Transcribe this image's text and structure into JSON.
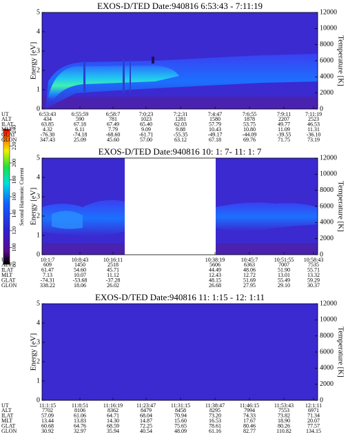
{
  "colorbar": {
    "label": "Second Harmonic Current",
    "lim": [
      80,
      240
    ],
    "ticks": [
      80,
      100,
      120,
      140,
      160,
      180,
      200,
      220,
      240
    ]
  },
  "chart_data": [
    {
      "type": "spectrogram",
      "title": "EXOS-D/TED   Date:940816  6:53:43 - 7:11:19",
      "y_label": "Energy [eV]",
      "y2_label": "Temperature [K]",
      "ylim": [
        0,
        5
      ],
      "yticks": [
        0,
        1,
        2,
        3,
        4,
        5
      ],
      "y2lim": [
        0,
        12000
      ],
      "y2ticks": [
        0,
        2000,
        4000,
        6000,
        8000,
        10000,
        12000
      ],
      "table": {
        "row_labels": [
          "UT",
          "ALT",
          "ILAT",
          "MLT",
          "GLAT",
          "GLON"
        ],
        "columns": [
          [
            "6:53:43",
            "434",
            "63.85",
            "4.32",
            "-76.30",
            "347.43"
          ],
          [
            "6:55:59",
            "590",
            "67.18",
            "6.11",
            "-74.18",
            "25.09"
          ],
          [
            "6:58:7",
            "781",
            "67.49",
            "7.79",
            "-68.60",
            "45.60"
          ],
          [
            "7:0:23",
            "1023",
            "65.40",
            "9.09",
            "-61.71",
            "57.00"
          ],
          [
            "7:2:31",
            "1281",
            "62.03",
            "9.88",
            "-55.35",
            "63.12"
          ],
          [
            "7:4:47",
            "1580",
            "57.79",
            "10.43",
            "-49.17",
            "67.18"
          ],
          [
            "7:6:55",
            "1878",
            "53.75",
            "10.80",
            "-44.09",
            "69.76"
          ],
          [
            "7:9:11",
            "2207",
            "49.77",
            "11.09",
            "-39.55",
            "71.75"
          ],
          [
            "7:11:19",
            "2523",
            "46.53",
            "11.31",
            "-36.10",
            "73.19"
          ]
        ]
      }
    },
    {
      "type": "spectrogram",
      "title": "EXOS-D/TED   Date:940816  10: 1: 7- 11: 1: 7",
      "y_label": "Energy [eV]",
      "y2_label": "Temperature [K]",
      "ylim": [
        0,
        5
      ],
      "yticks": [
        0,
        1,
        2,
        3,
        4,
        5
      ],
      "y2lim": [
        0,
        12000
      ],
      "y2ticks": [
        0,
        2000,
        4000,
        6000,
        8000,
        10000,
        12000
      ],
      "table": {
        "row_labels": [
          "UT",
          "ALT",
          "ILAT",
          "MLT",
          "GLAT",
          "GLON"
        ],
        "columns": [
          [
            "10:1:7",
            "609",
            "61.47",
            "7.13",
            "-74.31",
            "338.22"
          ],
          [
            "10:8:43",
            "1450",
            "54.60",
            "10.07",
            "-53.68",
            "18.06"
          ],
          [
            "10:16:11",
            "2518",
            "45.71",
            "11.12",
            "-37.28",
            "26.02"
          ],
          null,
          null,
          [
            "10:38:19",
            "5606",
            "44.49",
            "12.43",
            "48.15",
            "26.68"
          ],
          [
            "10:45:7",
            "6363",
            "48.06",
            "12.72",
            "51.69",
            "27.95"
          ],
          [
            "10:51:55",
            "7007",
            "51.90",
            "13.01",
            "55.49",
            "29.10"
          ],
          [
            "10:58:43",
            "7535",
            "55.71",
            "13.32",
            "59.29",
            "30.37"
          ]
        ]
      }
    },
    {
      "type": "spectrogram",
      "title": "EXOS-D/TED   Date:940816  11: 1:15 - 12: 1:11",
      "y_label": "Energy [eV]",
      "y2_label": "Temperature [K]",
      "ylim": [
        0,
        5
      ],
      "yticks": [
        0,
        1,
        2,
        3,
        4,
        5
      ],
      "y2lim": [
        0,
        12000
      ],
      "y2ticks": [
        0,
        2000,
        4000,
        6000,
        8000,
        10000,
        12000
      ],
      "table": {
        "row_labels": [
          "UT",
          "ALT",
          "ILAT",
          "MLT",
          "GLAT",
          "GLON"
        ],
        "columns": [
          [
            "11:1:15",
            "7702",
            "57.09",
            "13.44",
            "60.68",
            "30.92"
          ],
          [
            "11:8:51",
            "8106",
            "61.06",
            "13.83",
            "64.76",
            "32.97"
          ],
          [
            "11:16:19",
            "8362",
            "64.71",
            "14.30",
            "68.59",
            "35.94"
          ],
          [
            "11:23:47",
            "8479",
            "68.04",
            "14.87",
            "72.25",
            "40.54"
          ],
          [
            "11:31:15",
            "8458",
            "70.94",
            "15.60",
            "75.65",
            "48.09"
          ],
          [
            "11:38:47",
            "8295",
            "73.20",
            "16.53",
            "78.61",
            "61.16"
          ],
          [
            "11:46:15",
            "7994",
            "74.33",
            "17.67",
            "80.46",
            "82.77"
          ],
          [
            "11:53:43",
            "7553",
            "73.82",
            "18.90",
            "80.26",
            "110.82"
          ],
          [
            "12:1:11",
            "6971",
            "71.34",
            "20.07",
            "77.57",
            "134.15"
          ]
        ]
      }
    }
  ]
}
